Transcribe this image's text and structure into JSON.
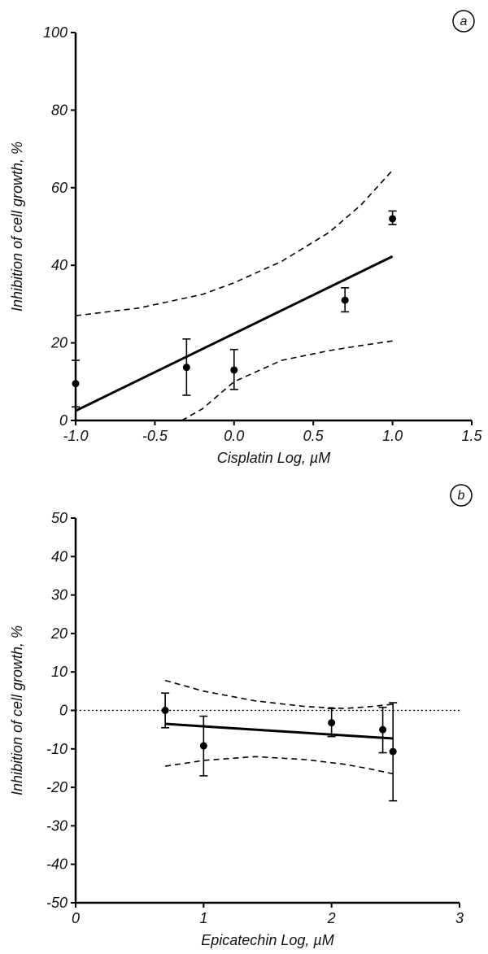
{
  "chart_data": [
    {
      "type": "scatter",
      "panel_label": "a",
      "xlabel": "Cisplatin Log, µM",
      "ylabel": "Inhibition of cell growth, %",
      "xlim": [
        -1.0,
        1.5
      ],
      "ylim": [
        0,
        100
      ],
      "xticks": [
        -1.0,
        -0.5,
        0.0,
        0.5,
        1.0,
        1.5
      ],
      "xtick_labels": [
        "-1.0",
        "-0.5",
        "0.0",
        "0.5",
        "1.0",
        "1.5"
      ],
      "yticks": [
        0,
        20,
        40,
        60,
        80,
        100
      ],
      "ytick_labels": [
        "0",
        "20",
        "40",
        "60",
        "80",
        "100"
      ],
      "grid": false,
      "points": [
        {
          "x": -1.0,
          "y": 9.5,
          "err_low": 3.5,
          "err_high": 15.5
        },
        {
          "x": -0.3,
          "y": 13.7,
          "err_low": 6.5,
          "err_high": 21.0
        },
        {
          "x": 0.0,
          "y": 13.0,
          "err_low": 8.0,
          "err_high": 18.3
        },
        {
          "x": 0.7,
          "y": 31.0,
          "err_low": 28.0,
          "err_high": 34.2
        },
        {
          "x": 1.0,
          "y": 52.0,
          "err_low": 50.5,
          "err_high": 54.0
        }
      ],
      "fit_line": {
        "x": [
          -1.0,
          1.0
        ],
        "y": [
          2.5,
          42.3
        ]
      },
      "ci_upper": [
        {
          "x": -1.0,
          "y": 27.0
        },
        {
          "x": -0.6,
          "y": 29.0
        },
        {
          "x": -0.2,
          "y": 32.5
        },
        {
          "x": 0.0,
          "y": 35.5
        },
        {
          "x": 0.3,
          "y": 41.0
        },
        {
          "x": 0.6,
          "y": 48.5
        },
        {
          "x": 0.8,
          "y": 55.5
        },
        {
          "x": 1.0,
          "y": 64.5
        }
      ],
      "ci_lower": [
        {
          "x": -0.33,
          "y": 0.0
        },
        {
          "x": -0.2,
          "y": 3.0
        },
        {
          "x": 0.0,
          "y": 10.0
        },
        {
          "x": 0.3,
          "y": 15.5
        },
        {
          "x": 0.6,
          "y": 18.0
        },
        {
          "x": 0.8,
          "y": 19.3
        },
        {
          "x": 1.0,
          "y": 20.5
        }
      ]
    },
    {
      "type": "scatter",
      "panel_label": "b",
      "xlabel": "Epicatechin Log, µM",
      "ylabel": "Inhibition of cell growth, %",
      "xlim": [
        0,
        3
      ],
      "ylim": [
        -50,
        50
      ],
      "xticks": [
        0,
        1,
        2,
        3
      ],
      "xtick_labels": [
        "0",
        "1",
        "2",
        "3"
      ],
      "yticks": [
        -50,
        -40,
        -30,
        -20,
        -10,
        0,
        10,
        20,
        30,
        40,
        50
      ],
      "ytick_labels": [
        "-50",
        "-40",
        "-30",
        "-20",
        "-10",
        "0",
        "10",
        "20",
        "30",
        "40",
        "50"
      ],
      "grid": false,
      "zero_reference_line": true,
      "points": [
        {
          "x": 0.7,
          "y": 0.0,
          "err_low": -4.5,
          "err_high": 4.5
        },
        {
          "x": 1.0,
          "y": -9.2,
          "err_low": -17.0,
          "err_high": -1.5
        },
        {
          "x": 2.0,
          "y": -3.2,
          "err_low": -6.8,
          "err_high": 0.5
        },
        {
          "x": 2.4,
          "y": -5.0,
          "err_low": -11.0,
          "err_high": 0.8
        },
        {
          "x": 2.48,
          "y": -10.7,
          "err_low": -23.5,
          "err_high": 2.0
        }
      ],
      "fit_line": {
        "x": [
          0.7,
          2.48
        ],
        "y": [
          -3.5,
          -7.3
        ]
      },
      "ci_upper": [
        {
          "x": 0.7,
          "y": 7.8
        },
        {
          "x": 1.0,
          "y": 5.0
        },
        {
          "x": 1.4,
          "y": 2.5
        },
        {
          "x": 1.8,
          "y": 1.0
        },
        {
          "x": 2.1,
          "y": 0.5
        },
        {
          "x": 2.3,
          "y": 1.0
        },
        {
          "x": 2.48,
          "y": 1.6
        }
      ],
      "ci_lower": [
        {
          "x": 0.7,
          "y": -14.5
        },
        {
          "x": 1.0,
          "y": -13.0
        },
        {
          "x": 1.4,
          "y": -12.0
        },
        {
          "x": 1.8,
          "y": -12.8
        },
        {
          "x": 2.1,
          "y": -14.0
        },
        {
          "x": 2.3,
          "y": -15.2
        },
        {
          "x": 2.48,
          "y": -16.5
        }
      ]
    }
  ]
}
